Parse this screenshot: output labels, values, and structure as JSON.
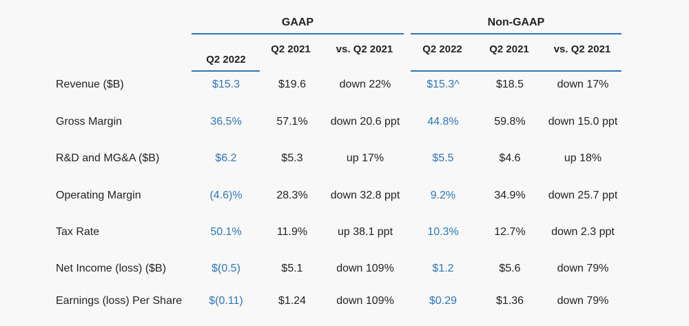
{
  "groups": [
    {
      "title": "GAAP"
    },
    {
      "title": "Non-GAAP"
    }
  ],
  "columns": [
    "Q2 2022",
    "Q2 2021",
    "vs. Q2 2021",
    "Q2 2022",
    "Q2 2021",
    "vs. Q2 2021"
  ],
  "rows": [
    {
      "label": "Revenue ($B)",
      "values": [
        "$15.3",
        "$19.6",
        "down 22%",
        "$15.3^",
        "$18.5",
        "down 17%"
      ]
    },
    {
      "label": "Gross Margin",
      "values": [
        "36.5%",
        "57.1%",
        "down 20.6 ppt",
        "44.8%",
        "59.8%",
        "down 15.0 ppt"
      ]
    },
    {
      "label": "R&D and MG&A ($B)",
      "values": [
        "$6.2",
        "$5.3",
        "up 17%",
        "$5.5",
        "$4.6",
        "up 18%"
      ]
    },
    {
      "label": "Operating Margin",
      "values": [
        "(4.6)%",
        "28.3%",
        "down 32.8 ppt",
        "9.2%",
        "34.9%",
        "down 25.7 ppt"
      ]
    },
    {
      "label": "Tax Rate",
      "values": [
        "50.1%",
        "11.9%",
        "up 38.1 ppt",
        "10.3%",
        "12.7%",
        "down 2.3 ppt"
      ]
    },
    {
      "label": "Net Income (loss) ($B)",
      "values": [
        "$(0.5)",
        "$5.1",
        "down 109%",
        "$1.2",
        "$5.6",
        "down 79%"
      ]
    },
    {
      "label": "Earnings (loss) Per Share",
      "values": [
        "$(0.11)",
        "$1.24",
        "down 109%",
        "$0.29",
        "$1.36",
        "down 79%"
      ]
    }
  ],
  "colors": {
    "accent": "#2e75b6",
    "text": "#222222",
    "background": "#f8f8f8"
  }
}
